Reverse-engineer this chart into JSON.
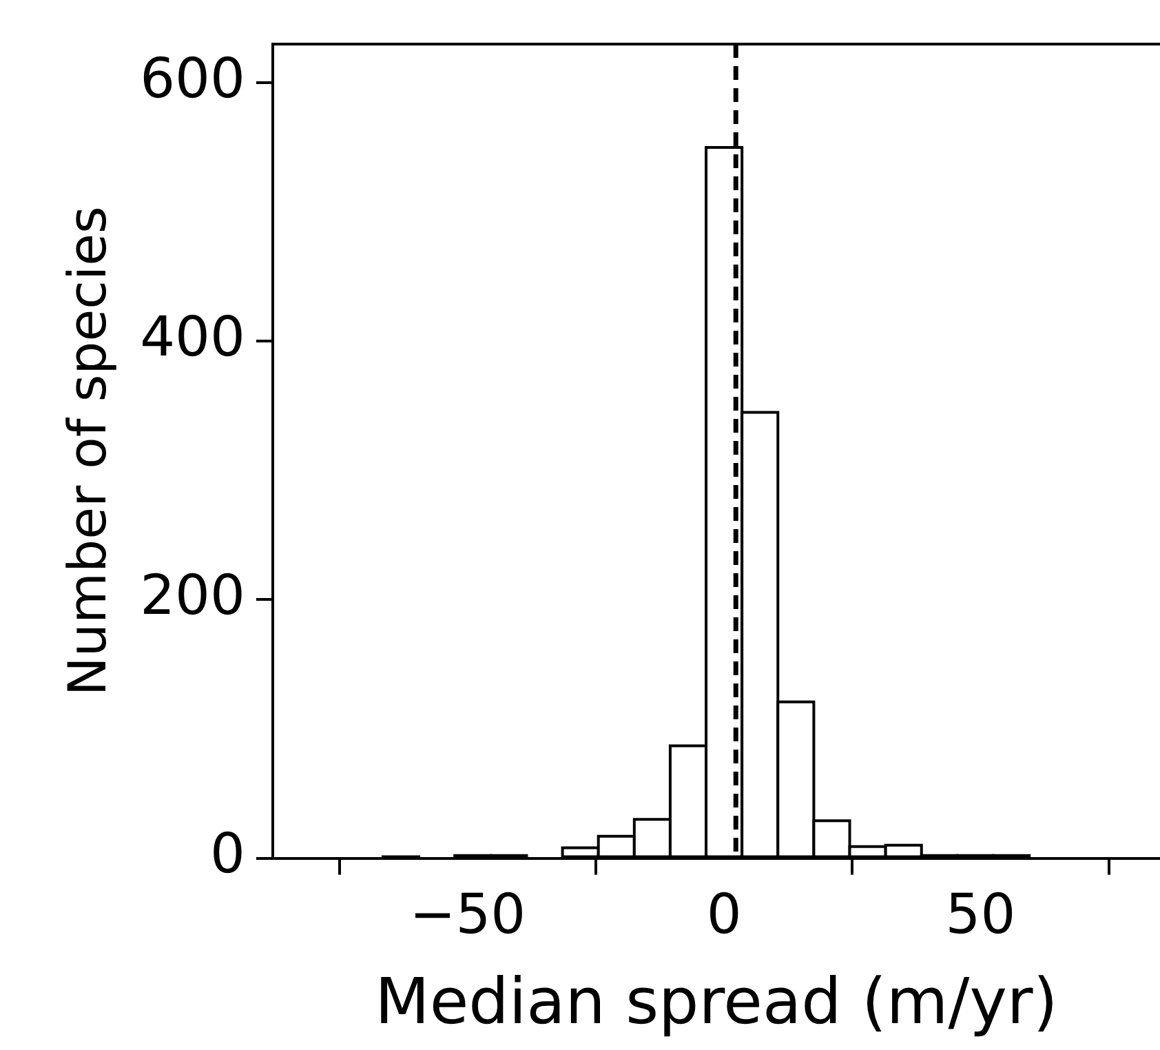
{
  "chart_data": {
    "type": "histogram",
    "xlabel": "Median spread (m/yr)",
    "ylabel": "Number of species",
    "bins": [
      -66.5,
      -59.5,
      -52.5,
      -45.5,
      -38.5,
      -31.5,
      -24.5,
      -17.5,
      -10.5,
      -3.5,
      3.5,
      10.5,
      17.5,
      24.5,
      31.5,
      38.5,
      45.5,
      52.5,
      59.5
    ],
    "values": [
      1,
      0,
      2,
      2,
      0,
      8,
      17,
      30,
      87,
      550,
      345,
      121,
      29,
      9,
      10,
      2,
      2,
      2
    ],
    "color": "#ffffff",
    "xlim": [
      -88,
      85
    ],
    "xticks": [
      -50,
      0,
      50
    ],
    "ylim": [
      0,
      630
    ],
    "yticks": [
      0,
      200,
      400,
      600
    ],
    "ref_lines": [
      {
        "axis": "x",
        "value": 2.3,
        "line_style": "dashed",
        "color": "#000000"
      }
    ],
    "grid": false,
    "legend": false
  }
}
